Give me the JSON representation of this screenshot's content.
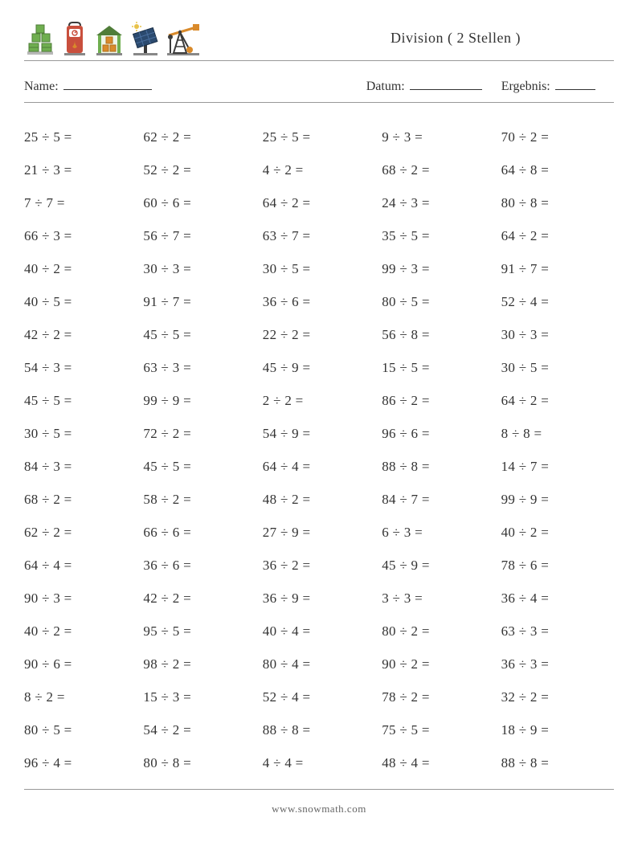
{
  "title": "Division ( 2 Stellen )",
  "labels": {
    "name": "Name:",
    "date": "Datum:",
    "result": "Ergebnis:"
  },
  "footer": "www.snowmath.com",
  "division_sign": "÷",
  "equals": "=",
  "text_color": "#333333",
  "background_color": "#ffffff",
  "rule_color": "#999999",
  "font_size_problem": 17,
  "font_size_title": 18,
  "columns": 5,
  "rows": 20,
  "problems": [
    [
      [
        25,
        5
      ],
      [
        62,
        2
      ],
      [
        25,
        5
      ],
      [
        9,
        3
      ],
      [
        70,
        2
      ]
    ],
    [
      [
        21,
        3
      ],
      [
        52,
        2
      ],
      [
        4,
        2
      ],
      [
        68,
        2
      ],
      [
        64,
        8
      ]
    ],
    [
      [
        7,
        7
      ],
      [
        60,
        6
      ],
      [
        64,
        2
      ],
      [
        24,
        3
      ],
      [
        80,
        8
      ]
    ],
    [
      [
        66,
        3
      ],
      [
        56,
        7
      ],
      [
        63,
        7
      ],
      [
        35,
        5
      ],
      [
        64,
        2
      ]
    ],
    [
      [
        40,
        2
      ],
      [
        30,
        3
      ],
      [
        30,
        5
      ],
      [
        99,
        3
      ],
      [
        91,
        7
      ]
    ],
    [
      [
        40,
        5
      ],
      [
        91,
        7
      ],
      [
        36,
        6
      ],
      [
        80,
        5
      ],
      [
        52,
        4
      ]
    ],
    [
      [
        42,
        2
      ],
      [
        45,
        5
      ],
      [
        22,
        2
      ],
      [
        56,
        8
      ],
      [
        30,
        3
      ]
    ],
    [
      [
        54,
        3
      ],
      [
        63,
        3
      ],
      [
        45,
        9
      ],
      [
        15,
        5
      ],
      [
        30,
        5
      ]
    ],
    [
      [
        45,
        5
      ],
      [
        99,
        9
      ],
      [
        2,
        2
      ],
      [
        86,
        2
      ],
      [
        64,
        2
      ]
    ],
    [
      [
        30,
        5
      ],
      [
        72,
        2
      ],
      [
        54,
        9
      ],
      [
        96,
        6
      ],
      [
        8,
        8
      ]
    ],
    [
      [
        84,
        3
      ],
      [
        45,
        5
      ],
      [
        64,
        4
      ],
      [
        88,
        8
      ],
      [
        14,
        7
      ]
    ],
    [
      [
        68,
        2
      ],
      [
        58,
        2
      ],
      [
        48,
        2
      ],
      [
        84,
        7
      ],
      [
        99,
        9
      ]
    ],
    [
      [
        62,
        2
      ],
      [
        66,
        6
      ],
      [
        27,
        9
      ],
      [
        6,
        3
      ],
      [
        40,
        2
      ]
    ],
    [
      [
        64,
        4
      ],
      [
        36,
        6
      ],
      [
        36,
        2
      ],
      [
        45,
        9
      ],
      [
        78,
        6
      ]
    ],
    [
      [
        90,
        3
      ],
      [
        42,
        2
      ],
      [
        36,
        9
      ],
      [
        3,
        3
      ],
      [
        36,
        4
      ]
    ],
    [
      [
        40,
        2
      ],
      [
        95,
        5
      ],
      [
        40,
        4
      ],
      [
        80,
        2
      ],
      [
        63,
        3
      ]
    ],
    [
      [
        90,
        6
      ],
      [
        98,
        2
      ],
      [
        80,
        4
      ],
      [
        90,
        2
      ],
      [
        36,
        3
      ]
    ],
    [
      [
        8,
        2
      ],
      [
        15,
        3
      ],
      [
        52,
        4
      ],
      [
        78,
        2
      ],
      [
        32,
        2
      ]
    ],
    [
      [
        80,
        5
      ],
      [
        54,
        2
      ],
      [
        88,
        8
      ],
      [
        75,
        5
      ],
      [
        18,
        9
      ]
    ],
    [
      [
        96,
        4
      ],
      [
        80,
        8
      ],
      [
        4,
        4
      ],
      [
        48,
        4
      ],
      [
        88,
        8
      ]
    ]
  ],
  "icons": {
    "colors": {
      "green": "#6fae4f",
      "dark_green": "#4f7d38",
      "red": "#c94f3d",
      "orange": "#d98a2b",
      "dark": "#3a3a3a",
      "navy": "#2b4a6f",
      "yellow": "#e8c24a",
      "gray": "#888888"
    }
  }
}
